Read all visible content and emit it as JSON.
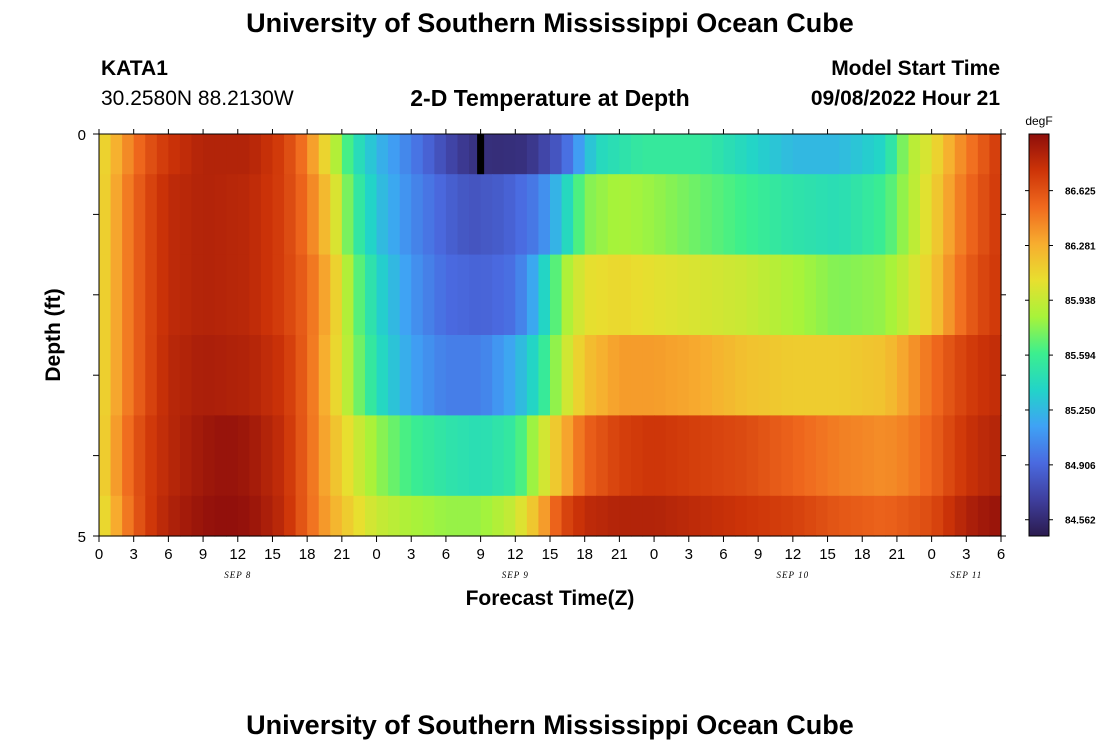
{
  "page": {
    "title": "University of Southern Mississippi Ocean Cube",
    "station": "KATA1",
    "coords": "30.2580N  88.2130W",
    "subtitle": "2-D Temperature at Depth",
    "start_label": "Model Start Time",
    "start_value": "09/08/2022 Hour 21",
    "bottom_title": "University of Southern Mississippi Ocean Cube"
  },
  "chart_data": {
    "type": "heatmap",
    "title": "2-D Temperature at Depth",
    "xlabel": "Forecast Time(Z)",
    "ylabel": "Depth (ft)",
    "x_tick_labels": [
      "0",
      "3",
      "6",
      "9",
      "12",
      "15",
      "18",
      "21",
      "0",
      "3",
      "6",
      "9",
      "12",
      "15",
      "18",
      "21",
      "0",
      "3",
      "6",
      "9",
      "12",
      "15",
      "18",
      "21",
      "0",
      "3",
      "6"
    ],
    "date_labels": [
      {
        "label": "SEP 8",
        "hour": 12
      },
      {
        "label": "SEP 9",
        "hour": 36
      },
      {
        "label": "SEP 10",
        "hour": 60
      },
      {
        "label": "SEP 11",
        "hour": 75
      }
    ],
    "x_range_hours": [
      0,
      78
    ],
    "y_tick_labels": [
      "0",
      "5"
    ],
    "y_range": [
      0,
      5
    ],
    "depth_rows": [
      0.25,
      1.25,
      2.25,
      3.25,
      4.25,
      4.75
    ],
    "depth_edges": [
      0,
      0.5,
      1.5,
      2.5,
      3.5,
      4.5,
      5
    ],
    "colorbar": {
      "unit": "degF",
      "tick_labels": [
        "86.625",
        "86.281",
        "85.938",
        "85.594",
        "85.250",
        "84.906",
        "84.562"
      ],
      "min": 84.46,
      "max": 86.98,
      "colors": [
        "#2b1b4e",
        "#3f3f9e",
        "#4a6ae0",
        "#3fa2f5",
        "#22d4c8",
        "#3cef8e",
        "#a7f33a",
        "#e8df2f",
        "#f7ad2f",
        "#f06a1e",
        "#cd3408",
        "#8e0e0b"
      ]
    },
    "marker": {
      "hour": 33,
      "depth_top": 0,
      "depth_bottom": 0.5
    },
    "series": [
      {
        "depth": 0.25,
        "hours": [
          0,
          2,
          4,
          6,
          9,
          13,
          16,
          18,
          20,
          22,
          24,
          27,
          30,
          32,
          34,
          37,
          40,
          43,
          47,
          52,
          56,
          60,
          64,
          68,
          70,
          72,
          74,
          76,
          78
        ],
        "values": [
          86.05,
          86.35,
          86.6,
          86.75,
          86.85,
          86.85,
          86.7,
          86.45,
          86.0,
          85.5,
          85.25,
          85.0,
          84.75,
          84.62,
          84.58,
          84.6,
          84.85,
          85.4,
          85.55,
          85.55,
          85.4,
          85.25,
          85.25,
          85.4,
          85.85,
          86.05,
          86.35,
          86.55,
          86.75
        ]
      },
      {
        "depth": 1.25,
        "hours": [
          0,
          2,
          4,
          6,
          9,
          13,
          16,
          18,
          20,
          22,
          24,
          27,
          30,
          32,
          35,
          38,
          40,
          42,
          45,
          48,
          52,
          56,
          60,
          64,
          68,
          70,
          72,
          74,
          76,
          78
        ],
        "values": [
          86.05,
          86.4,
          86.65,
          86.8,
          86.85,
          86.82,
          86.7,
          86.5,
          86.15,
          85.6,
          85.3,
          85.05,
          84.88,
          84.8,
          84.85,
          85.0,
          85.3,
          85.75,
          85.85,
          85.8,
          85.7,
          85.6,
          85.5,
          85.45,
          85.6,
          85.85,
          86.1,
          86.4,
          86.6,
          86.75
        ]
      },
      {
        "depth": 2.25,
        "hours": [
          0,
          2,
          4,
          6,
          9,
          13,
          16,
          18,
          20,
          22,
          24,
          27,
          30,
          33,
          36,
          38,
          40,
          42,
          45,
          48,
          52,
          56,
          60,
          64,
          68,
          70,
          72,
          74,
          76,
          78
        ],
        "values": [
          86.05,
          86.4,
          86.65,
          86.8,
          86.85,
          86.82,
          86.7,
          86.55,
          86.25,
          85.75,
          85.4,
          85.1,
          84.92,
          84.88,
          84.95,
          85.25,
          85.8,
          86.05,
          86.1,
          86.05,
          86.0,
          85.95,
          85.85,
          85.75,
          85.8,
          85.95,
          86.15,
          86.45,
          86.65,
          86.75
        ]
      },
      {
        "depth": 3.25,
        "hours": [
          0,
          2,
          4,
          6,
          9,
          13,
          16,
          18,
          20,
          22,
          24,
          27,
          30,
          33,
          36,
          38,
          40,
          42,
          45,
          48,
          52,
          56,
          60,
          64,
          68,
          70,
          72,
          74,
          76,
          78
        ],
        "values": [
          86.05,
          86.4,
          86.65,
          86.82,
          86.88,
          86.85,
          86.75,
          86.55,
          86.2,
          85.8,
          85.45,
          85.15,
          85.0,
          85.0,
          85.2,
          85.45,
          85.9,
          86.2,
          86.35,
          86.35,
          86.3,
          86.2,
          86.15,
          86.15,
          86.2,
          86.35,
          86.5,
          86.65,
          86.75,
          86.8
        ]
      },
      {
        "depth": 4.25,
        "hours": [
          0,
          2,
          4,
          6,
          9,
          11,
          13,
          16,
          18,
          20,
          22,
          24,
          27,
          30,
          33,
          36,
          38,
          40,
          42,
          45,
          48,
          52,
          56,
          60,
          64,
          68,
          70,
          72,
          74,
          76,
          78
        ],
        "values": [
          86.05,
          86.45,
          86.7,
          86.82,
          86.92,
          86.95,
          86.92,
          86.78,
          86.55,
          86.25,
          86.0,
          85.8,
          85.6,
          85.5,
          85.45,
          85.55,
          85.9,
          86.25,
          86.55,
          86.7,
          86.75,
          86.7,
          86.65,
          86.55,
          86.45,
          86.4,
          86.45,
          86.55,
          86.7,
          86.8,
          86.85
        ]
      },
      {
        "depth": 4.75,
        "hours": [
          0,
          2,
          4,
          6,
          9,
          11,
          13,
          16,
          18,
          20,
          22,
          24,
          27,
          30,
          33,
          36,
          38,
          40,
          42,
          45,
          48,
          52,
          56,
          60,
          64,
          68,
          70,
          72,
          74,
          76,
          78
        ],
        "values": [
          86.0,
          86.4,
          86.7,
          86.85,
          86.95,
          86.97,
          86.95,
          86.8,
          86.55,
          86.3,
          86.1,
          85.95,
          85.85,
          85.8,
          85.8,
          85.95,
          86.25,
          86.65,
          86.8,
          86.85,
          86.85,
          86.8,
          86.75,
          86.7,
          86.6,
          86.55,
          86.6,
          86.65,
          86.8,
          86.9,
          86.95
        ]
      }
    ]
  }
}
